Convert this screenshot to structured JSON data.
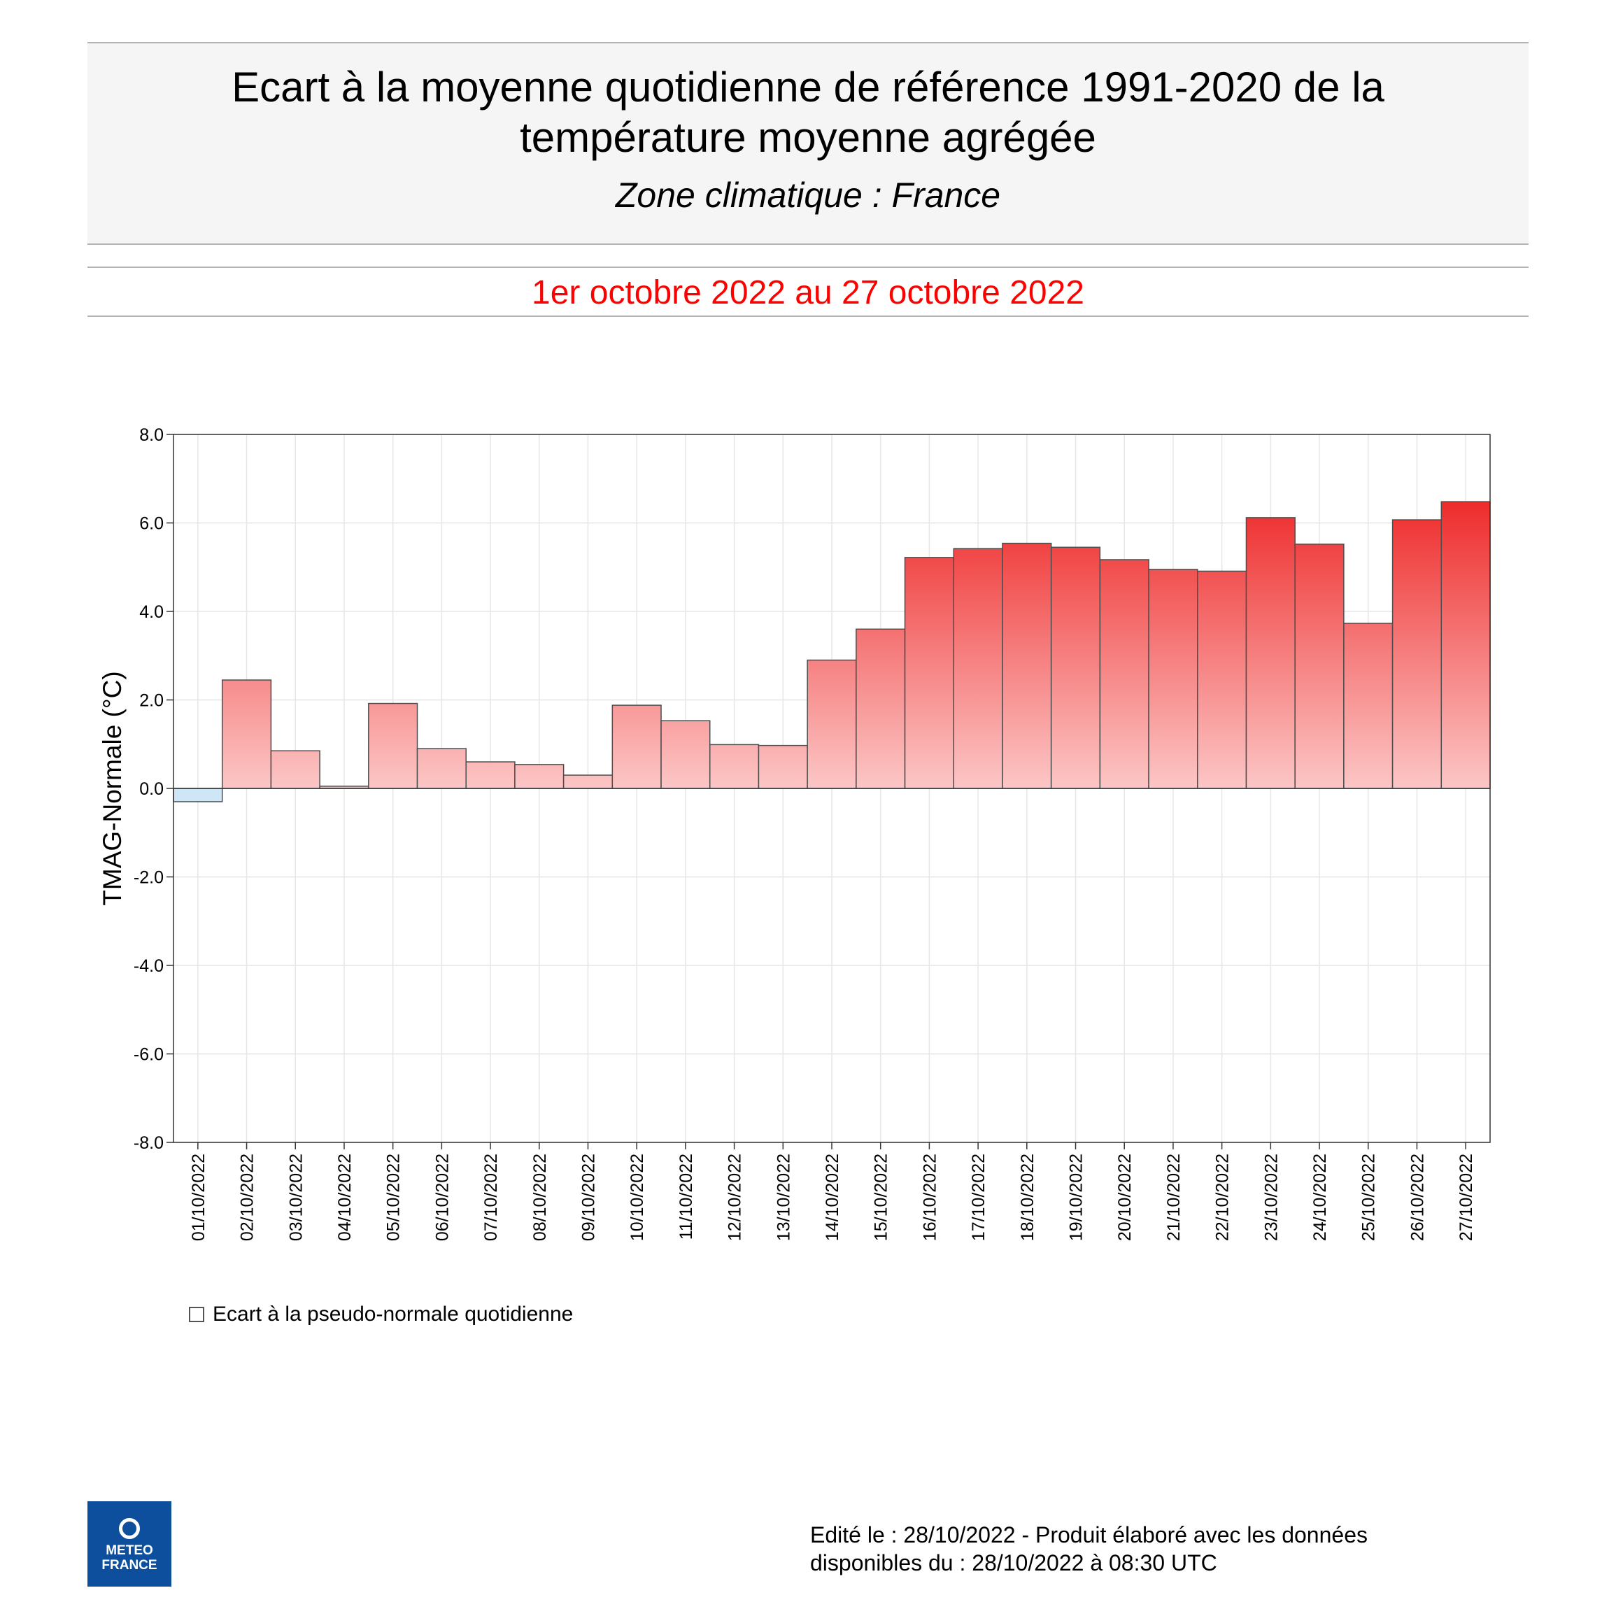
{
  "header": {
    "title_line1": "Ecart à la moyenne quotidienne de référence 1991-2020 de la",
    "title_line2": "température moyenne  agrégée",
    "subtitle": "Zone climatique : France",
    "period": "1er octobre 2022 au 27 octobre 2022"
  },
  "legend": {
    "label": "Ecart à la pseudo-normale quotidienne"
  },
  "logo": {
    "line1": "METEO",
    "line2": "FRANCE"
  },
  "footer": {
    "line1": "Edité le : 28/10/2022 - Produit élaboré avec les données",
    "line2": "disponibles du : 28/10/2022 à 08:30 UTC"
  },
  "colors": {
    "positive_top": "#ee2828",
    "positive_bottom": "#fcc6c6",
    "negative": "#cfe6f7",
    "period_text": "#ff0000"
  },
  "chart_data": {
    "type": "bar",
    "title": "",
    "xlabel": "",
    "ylabel": "TMAG-Normale (°C)",
    "ylim": [
      -8.0,
      8.0
    ],
    "yticks": [
      "8.0",
      "6.0",
      "4.0",
      "2.0",
      "0.0",
      "-2.0",
      "-4.0",
      "-6.0",
      "-8.0"
    ],
    "grid": true,
    "categories": [
      "01/10/2022",
      "02/10/2022",
      "03/10/2022",
      "04/10/2022",
      "05/10/2022",
      "06/10/2022",
      "07/10/2022",
      "08/10/2022",
      "09/10/2022",
      "10/10/2022",
      "11/10/2022",
      "12/10/2022",
      "13/10/2022",
      "14/10/2022",
      "15/10/2022",
      "16/10/2022",
      "17/10/2022",
      "18/10/2022",
      "19/10/2022",
      "20/10/2022",
      "21/10/2022",
      "22/10/2022",
      "23/10/2022",
      "24/10/2022",
      "25/10/2022",
      "26/10/2022",
      "27/10/2022"
    ],
    "values": [
      -0.3,
      2.45,
      0.85,
      0.05,
      1.92,
      0.9,
      0.6,
      0.54,
      0.3,
      1.88,
      1.53,
      0.99,
      0.97,
      2.9,
      3.6,
      5.22,
      5.42,
      5.54,
      5.45,
      5.17,
      4.95,
      4.91,
      6.12,
      5.52,
      3.73,
      6.07,
      6.48
    ]
  }
}
